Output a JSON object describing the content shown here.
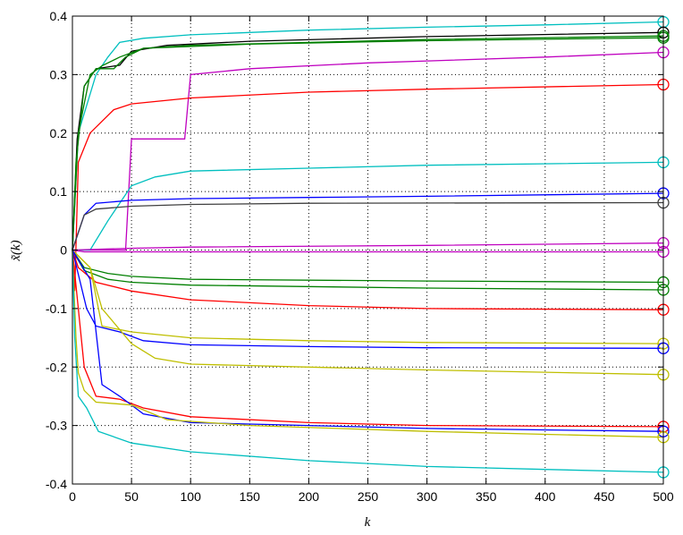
{
  "chart_data": {
    "type": "line",
    "title": "",
    "xlabel": "k",
    "ylabel": "x̃(k)",
    "xlim": [
      0,
      500
    ],
    "ylim": [
      -0.4,
      0.4
    ],
    "xticks": [
      0,
      50,
      100,
      150,
      200,
      250,
      300,
      350,
      400,
      450,
      500
    ],
    "yticks": [
      -0.4,
      -0.3,
      -0.2,
      -0.1,
      0,
      0.1,
      0.2,
      0.3,
      0.4
    ],
    "xtick_labels": [
      "0",
      "50",
      "100",
      "150",
      "200",
      "250",
      "300",
      "350",
      "400",
      "450",
      "500"
    ],
    "ytick_labels": [
      "-0.4",
      "-0.3",
      "-0.2",
      "-0.1",
      "0",
      "0.1",
      "0.2",
      "0.3",
      "0.4"
    ],
    "grid": true,
    "end_marker": "circle",
    "series": [
      {
        "color": "#00bfbf",
        "points": [
          [
            0,
            0
          ],
          [
            5,
            0.2
          ],
          [
            20,
            0.3
          ],
          [
            30,
            0.33
          ],
          [
            40,
            0.355
          ],
          [
            60,
            0.362
          ],
          [
            100,
            0.368
          ],
          [
            200,
            0.376
          ],
          [
            300,
            0.381
          ],
          [
            400,
            0.385
          ],
          [
            500,
            0.39
          ]
        ]
      },
      {
        "color": "#000000",
        "points": [
          [
            0,
            0
          ],
          [
            4,
            0.19
          ],
          [
            10,
            0.28
          ],
          [
            20,
            0.31
          ],
          [
            40,
            0.316
          ],
          [
            50,
            0.34
          ],
          [
            80,
            0.35
          ],
          [
            150,
            0.357
          ],
          [
            300,
            0.365
          ],
          [
            500,
            0.372
          ]
        ]
      },
      {
        "color": "#007f00",
        "points": [
          [
            0,
            0
          ],
          [
            3,
            0.15
          ],
          [
            10,
            0.28
          ],
          [
            20,
            0.31
          ],
          [
            35,
            0.31
          ],
          [
            45,
            0.33
          ],
          [
            60,
            0.345
          ],
          [
            100,
            0.35
          ],
          [
            200,
            0.355
          ],
          [
            300,
            0.36
          ],
          [
            500,
            0.366
          ]
        ]
      },
      {
        "color": "#007f00",
        "points": [
          [
            0,
            0
          ],
          [
            5,
            0.2
          ],
          [
            15,
            0.3
          ],
          [
            25,
            0.315
          ],
          [
            40,
            0.33
          ],
          [
            60,
            0.345
          ],
          [
            150,
            0.352
          ],
          [
            300,
            0.358
          ],
          [
            500,
            0.363
          ]
        ]
      },
      {
        "color": "#bf00bf",
        "points": [
          [
            0,
            0
          ],
          [
            45,
            0
          ],
          [
            50,
            0.19
          ],
          [
            95,
            0.19
          ],
          [
            100,
            0.3
          ],
          [
            150,
            0.31
          ],
          [
            250,
            0.32
          ],
          [
            400,
            0.33
          ],
          [
            500,
            0.338
          ]
        ]
      },
      {
        "color": "#ff0000",
        "points": [
          [
            0,
            0
          ],
          [
            2,
            -0.07
          ],
          [
            5,
            0.15
          ],
          [
            15,
            0.2
          ],
          [
            35,
            0.24
          ],
          [
            50,
            0.25
          ],
          [
            100,
            0.26
          ],
          [
            200,
            0.27
          ],
          [
            300,
            0.275
          ],
          [
            500,
            0.283
          ]
        ]
      },
      {
        "color": "#00bfbf",
        "points": [
          [
            0,
            0
          ],
          [
            15,
            0
          ],
          [
            30,
            0.05
          ],
          [
            50,
            0.11
          ],
          [
            70,
            0.125
          ],
          [
            100,
            0.135
          ],
          [
            200,
            0.14
          ],
          [
            300,
            0.145
          ],
          [
            500,
            0.15
          ]
        ]
      },
      {
        "color": "#0000ff",
        "points": [
          [
            0,
            0
          ],
          [
            10,
            0.06
          ],
          [
            20,
            0.08
          ],
          [
            50,
            0.085
          ],
          [
            100,
            0.088
          ],
          [
            200,
            0.09
          ],
          [
            300,
            0.092
          ],
          [
            500,
            0.097
          ]
        ]
      },
      {
        "color": "#404040",
        "points": [
          [
            0,
            0
          ],
          [
            10,
            0.06
          ],
          [
            20,
            0.07
          ],
          [
            50,
            0.075
          ],
          [
            100,
            0.078
          ],
          [
            200,
            0.08
          ],
          [
            500,
            0.081
          ]
        ]
      },
      {
        "color": "#bf00bf",
        "points": [
          [
            0,
            0
          ],
          [
            50,
            0.003
          ],
          [
            100,
            0.005
          ],
          [
            300,
            0.008
          ],
          [
            500,
            0.012
          ]
        ]
      },
      {
        "color": "#bf00bf",
        "points": [
          [
            0,
            0
          ],
          [
            10,
            -0.003
          ],
          [
            100,
            -0.003
          ],
          [
            300,
            -0.003
          ],
          [
            500,
            -0.003
          ]
        ]
      },
      {
        "color": "#007f00",
        "points": [
          [
            0,
            0
          ],
          [
            10,
            -0.03
          ],
          [
            30,
            -0.04
          ],
          [
            50,
            -0.045
          ],
          [
            100,
            -0.05
          ],
          [
            300,
            -0.053
          ],
          [
            500,
            -0.055
          ]
        ]
      },
      {
        "color": "#007f00",
        "points": [
          [
            0,
            0
          ],
          [
            10,
            -0.035
          ],
          [
            30,
            -0.05
          ],
          [
            50,
            -0.055
          ],
          [
            100,
            -0.06
          ],
          [
            300,
            -0.065
          ],
          [
            500,
            -0.068
          ]
        ]
      },
      {
        "color": "#ff0000",
        "points": [
          [
            0,
            0
          ],
          [
            5,
            -0.03
          ],
          [
            20,
            -0.055
          ],
          [
            50,
            -0.07
          ],
          [
            100,
            -0.085
          ],
          [
            200,
            -0.095
          ],
          [
            300,
            -0.1
          ],
          [
            500,
            -0.102
          ]
        ]
      },
      {
        "color": "#bfbf00",
        "points": [
          [
            0,
            0
          ],
          [
            15,
            -0.03
          ],
          [
            25,
            -0.13
          ],
          [
            50,
            -0.14
          ],
          [
            100,
            -0.15
          ],
          [
            200,
            -0.155
          ],
          [
            300,
            -0.158
          ],
          [
            500,
            -0.16
          ]
        ]
      },
      {
        "color": "#0000ff",
        "points": [
          [
            0,
            0
          ],
          [
            12,
            -0.1
          ],
          [
            20,
            -0.13
          ],
          [
            40,
            -0.14
          ],
          [
            60,
            -0.155
          ],
          [
            100,
            -0.162
          ],
          [
            200,
            -0.165
          ],
          [
            300,
            -0.167
          ],
          [
            500,
            -0.168
          ]
        ]
      },
      {
        "color": "#bfbf00",
        "points": [
          [
            0,
            0
          ],
          [
            15,
            -0.03
          ],
          [
            25,
            -0.1
          ],
          [
            50,
            -0.16
          ],
          [
            70,
            -0.185
          ],
          [
            100,
            -0.195
          ],
          [
            200,
            -0.2
          ],
          [
            300,
            -0.205
          ],
          [
            500,
            -0.213
          ]
        ]
      },
      {
        "color": "#ff0000",
        "points": [
          [
            0,
            0
          ],
          [
            5,
            -0.1
          ],
          [
            10,
            -0.2
          ],
          [
            20,
            -0.25
          ],
          [
            40,
            -0.255
          ],
          [
            60,
            -0.27
          ],
          [
            100,
            -0.285
          ],
          [
            200,
            -0.295
          ],
          [
            300,
            -0.3
          ],
          [
            500,
            -0.302
          ]
        ]
      },
      {
        "color": "#0000ff",
        "points": [
          [
            0,
            0
          ],
          [
            15,
            -0.05
          ],
          [
            25,
            -0.23
          ],
          [
            40,
            -0.25
          ],
          [
            60,
            -0.28
          ],
          [
            100,
            -0.295
          ],
          [
            200,
            -0.3
          ],
          [
            300,
            -0.305
          ],
          [
            500,
            -0.31
          ]
        ]
      },
      {
        "color": "#bfbf00",
        "points": [
          [
            0,
            0
          ],
          [
            3,
            -0.15
          ],
          [
            5,
            -0.21
          ],
          [
            10,
            -0.24
          ],
          [
            20,
            -0.26
          ],
          [
            50,
            -0.265
          ],
          [
            80,
            -0.29
          ],
          [
            150,
            -0.3
          ],
          [
            300,
            -0.31
          ],
          [
            500,
            -0.32
          ]
        ]
      },
      {
        "color": "#00bfbf",
        "points": [
          [
            0,
            0
          ],
          [
            2,
            -0.15
          ],
          [
            5,
            -0.25
          ],
          [
            12,
            -0.27
          ],
          [
            22,
            -0.31
          ],
          [
            50,
            -0.33
          ],
          [
            100,
            -0.345
          ],
          [
            200,
            -0.36
          ],
          [
            300,
            -0.37
          ],
          [
            400,
            -0.375
          ],
          [
            500,
            -0.38
          ]
        ]
      }
    ]
  }
}
